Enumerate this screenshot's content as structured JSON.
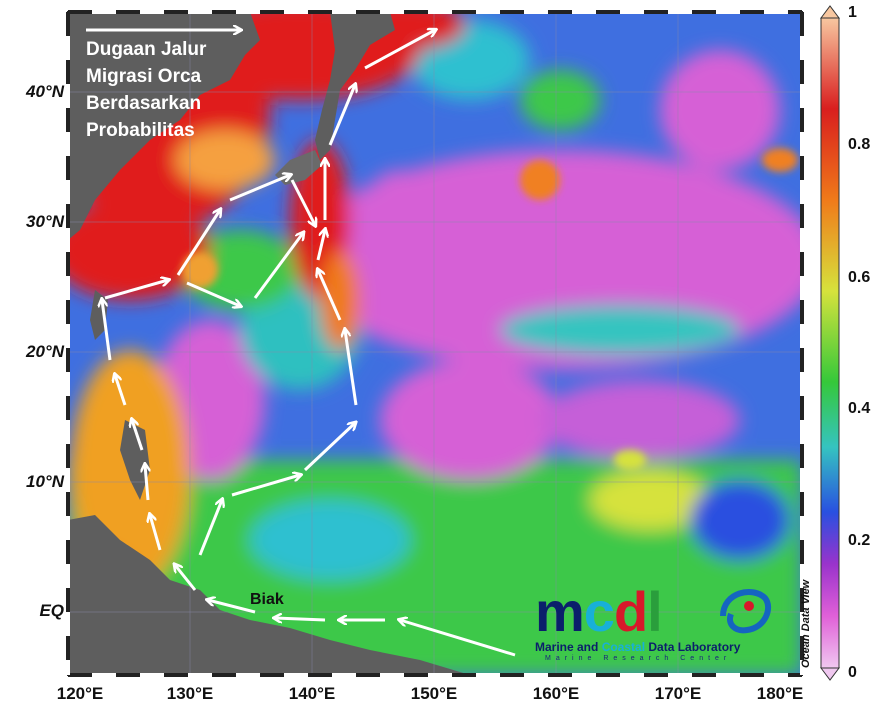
{
  "map": {
    "title_lines": [
      "Dugaan Jalur",
      "Migrasi Orca",
      "Berdasarkan",
      "Probabilitas"
    ],
    "place_label": "Biak",
    "lat_labels": [
      "40°N",
      "30°N",
      "20°N",
      "10°N",
      "EQ"
    ],
    "lon_labels": [
      "120°E",
      "130°E",
      "140°E",
      "150°E",
      "160°E",
      "170°E",
      "180°E"
    ],
    "colorbar": {
      "labels": [
        "1",
        "0.8",
        "0.6",
        "0.4",
        "0.2",
        "0"
      ],
      "colors": [
        "#f7c7a0",
        "#d91e1e",
        "#f07a1a",
        "#d6e23c",
        "#35c83a",
        "#35c4c0",
        "#2950e0",
        "#9933cc",
        "#e060d8",
        "#f0c8f0"
      ]
    },
    "watermark": "Ocean Data View",
    "logo": {
      "letters": [
        "m",
        "c",
        "d",
        "l"
      ],
      "letter_colors": [
        "#0b1f6b",
        "#18b0d8",
        "#d8182a",
        "#2a9e3c"
      ],
      "subtitle_parts": [
        "Marine and ",
        "Coastal ",
        "Data Laboratory"
      ],
      "subtitle_colors": [
        "#0b1f6b",
        "#18b0d8",
        "#0b1f6b"
      ],
      "tagline": "Marine Research Center"
    }
  }
}
